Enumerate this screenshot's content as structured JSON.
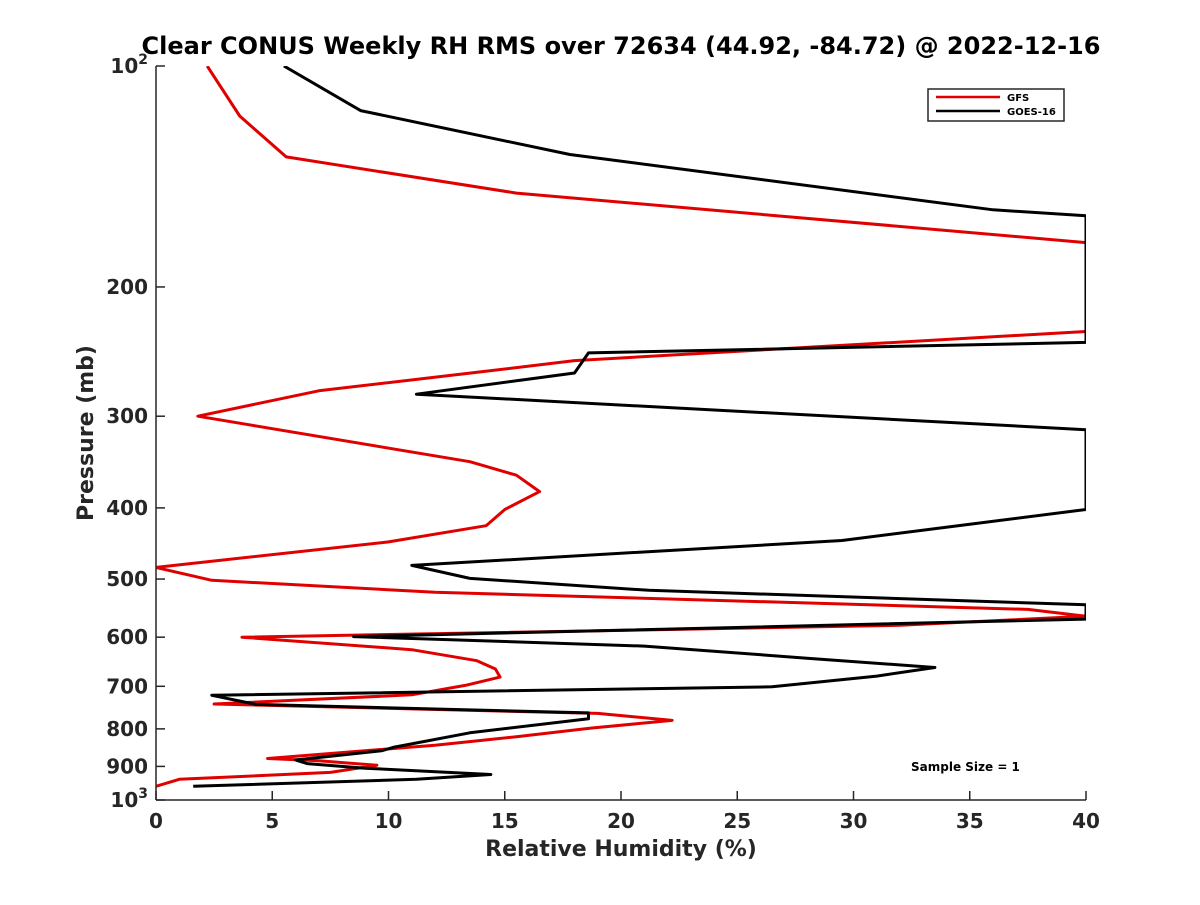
{
  "chart_data": {
    "type": "line",
    "title": "Clear CONUS Weekly RH RMS over 72634 (44.92, -84.72) @ 2022-12-16",
    "xlabel": "Relative Humidity (%)",
    "ylabel": "Pressure (mb)",
    "xlim": [
      0,
      40
    ],
    "ylim": [
      100,
      1000
    ],
    "yscale": "log",
    "y_reversed": true,
    "x_ticks": [
      0,
      5,
      10,
      15,
      20,
      25,
      30,
      35,
      40
    ],
    "x_tick_labels": [
      "0",
      "5",
      "10",
      "15",
      "20",
      "25",
      "30",
      "35",
      "40"
    ],
    "y_ticks": [
      100,
      200,
      300,
      400,
      500,
      600,
      700,
      800,
      900,
      1000
    ],
    "y_tick_labels": [
      {
        "base": "10",
        "exp": "2"
      },
      {
        "base": "200",
        "exp": ""
      },
      {
        "base": "300",
        "exp": ""
      },
      {
        "base": "400",
        "exp": ""
      },
      {
        "base": "500",
        "exp": ""
      },
      {
        "base": "600",
        "exp": ""
      },
      {
        "base": "700",
        "exp": ""
      },
      {
        "base": "800",
        "exp": ""
      },
      {
        "base": "900",
        "exp": ""
      },
      {
        "base": "10",
        "exp": "3"
      }
    ],
    "legend": {
      "position": "top-right",
      "entries": [
        "GFS",
        "GOES-16"
      ]
    },
    "annotation": "Sample Size = 1",
    "series": [
      {
        "name": "GFS",
        "color": "#e00000",
        "points": [
          [
            2.2,
            100
          ],
          [
            3.6,
            117
          ],
          [
            5.6,
            133
          ],
          [
            15.5,
            149
          ],
          [
            40,
            174
          ],
          [
            40,
            230
          ],
          [
            18,
            252
          ],
          [
            14,
            261
          ],
          [
            7,
            277
          ],
          [
            1.8,
            300
          ],
          [
            13.5,
            346
          ],
          [
            15.5,
            361
          ],
          [
            16.5,
            380
          ],
          [
            15,
            402
          ],
          [
            14.2,
            423
          ],
          [
            10,
            445
          ],
          [
            0,
            482
          ],
          [
            2.4,
            502
          ],
          [
            12,
            521
          ],
          [
            37.5,
            550
          ],
          [
            40,
            562
          ],
          [
            32,
            578
          ],
          [
            3.7,
            600
          ],
          [
            11,
            624
          ],
          [
            13.8,
            646
          ],
          [
            14.6,
            663
          ],
          [
            14.8,
            680
          ],
          [
            13.3,
            698
          ],
          [
            11,
            719
          ],
          [
            2.5,
            740
          ],
          [
            19,
            762
          ],
          [
            22.2,
            779
          ],
          [
            18.7,
            798
          ],
          [
            15.5,
            820
          ],
          [
            12,
            842
          ],
          [
            4.8,
            878
          ],
          [
            7,
            884
          ],
          [
            9.5,
            897
          ],
          [
            7.5,
            917
          ],
          [
            1,
            937
          ],
          [
            0,
            958
          ]
        ]
      },
      {
        "name": "GOES-16",
        "color": "#000000",
        "points": [
          [
            5.5,
            100
          ],
          [
            8.8,
            115
          ],
          [
            17.8,
            132
          ],
          [
            36,
            157
          ],
          [
            40,
            160
          ],
          [
            40,
            238
          ],
          [
            18.6,
            246
          ],
          [
            18,
            262
          ],
          [
            11.2,
            280
          ],
          [
            40,
            313
          ],
          [
            40,
            402
          ],
          [
            35,
            421
          ],
          [
            29.5,
            443
          ],
          [
            11,
            479
          ],
          [
            13.5,
            499
          ],
          [
            21.2,
            518
          ],
          [
            40,
            542
          ],
          [
            40,
            567
          ],
          [
            8.5,
            599
          ],
          [
            21,
            617
          ],
          [
            28,
            641
          ],
          [
            33.5,
            660
          ],
          [
            31,
            678
          ],
          [
            26.5,
            701
          ],
          [
            2.4,
            720
          ],
          [
            4.3,
            741
          ],
          [
            18.6,
            761
          ],
          [
            18.6,
            775
          ],
          [
            13.5,
            810
          ],
          [
            10.2,
            848
          ],
          [
            9.7,
            857
          ],
          [
            6,
            882
          ],
          [
            6.5,
            892
          ],
          [
            9,
            905
          ],
          [
            14.4,
            923
          ],
          [
            11.2,
            937
          ],
          [
            1.6,
            958
          ]
        ]
      }
    ]
  }
}
